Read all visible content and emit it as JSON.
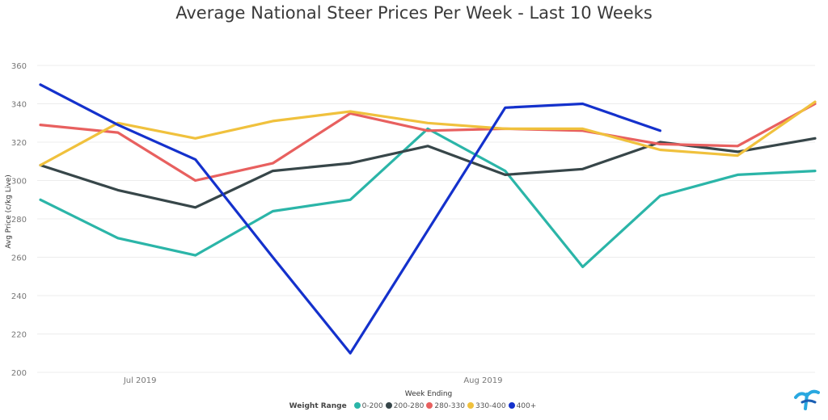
{
  "chart_data": {
    "type": "line",
    "title": "Average National Steer Prices Per Week - Last 10 Weeks",
    "xlabel": "Week Ending",
    "ylabel": "Avg Price (c/kg Live)",
    "ylim": [
      200,
      360
    ],
    "yticks": [
      200,
      220,
      240,
      260,
      280,
      300,
      320,
      340,
      360
    ],
    "x": [
      "2019-06-22",
      "2019-06-29",
      "2019-07-06",
      "2019-07-13",
      "2019-07-20",
      "2019-07-27",
      "2019-08-03",
      "2019-08-10",
      "2019-08-17",
      "2019-08-24",
      "2019-08-31"
    ],
    "xtick_labels": [
      {
        "date": "2019-07-01",
        "label": "Jul 2019"
      },
      {
        "date": "2019-08-01",
        "label": "Aug 2019"
      }
    ],
    "legend_title": "Weight Range",
    "legend_position": "bottom-center",
    "grid": true,
    "series": [
      {
        "name": "0-200",
        "color": "#2bb5a8",
        "values": [
          290,
          270,
          261,
          284,
          290,
          327,
          305,
          255,
          292,
          303,
          305
        ]
      },
      {
        "name": "200-280",
        "color": "#374649",
        "values": [
          308,
          295,
          286,
          305,
          309,
          318,
          303,
          306,
          320,
          315,
          322
        ]
      },
      {
        "name": "280-330",
        "color": "#e8605f",
        "values": [
          329,
          325,
          300,
          309,
          335,
          326,
          327,
          326,
          319,
          318,
          340
        ]
      },
      {
        "name": "330-400",
        "color": "#f0c13d",
        "values": [
          308,
          330,
          322,
          331,
          336,
          330,
          327,
          327,
          316,
          313,
          341
        ]
      },
      {
        "name": "400+",
        "color": "#1431cc",
        "values": [
          350,
          329,
          311,
          260,
          210,
          274,
          338,
          340,
          326,
          null,
          null
        ]
      }
    ]
  }
}
